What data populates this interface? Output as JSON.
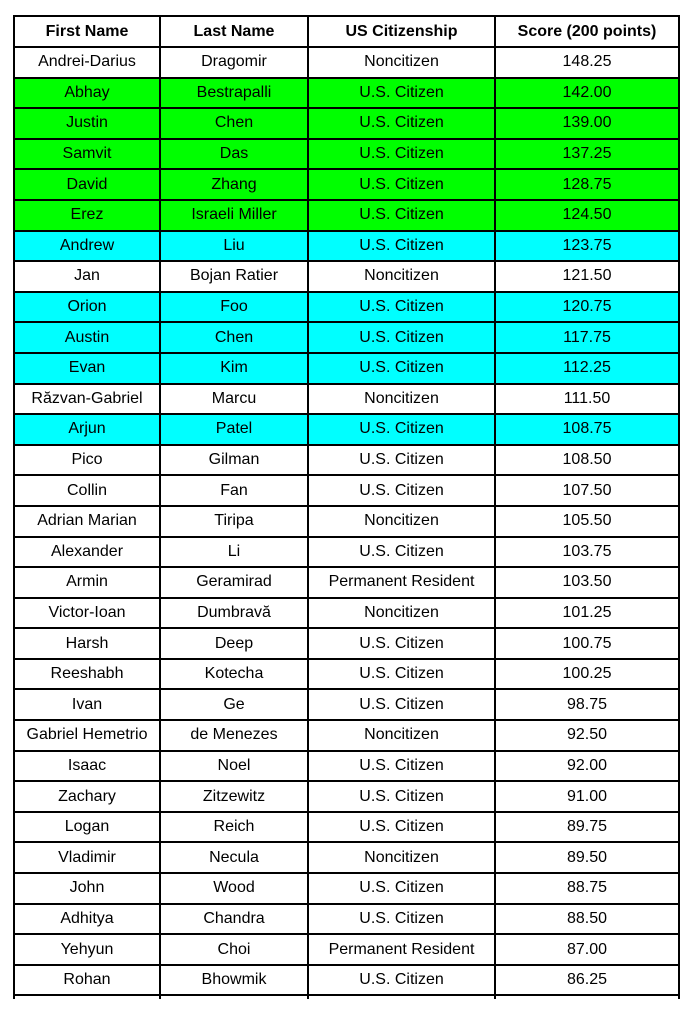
{
  "colors": {
    "row_green": "#00FF00",
    "row_cyan": "#00FFFF",
    "row_default": "#FFFFFF",
    "border": "#000000",
    "text": "#000000"
  },
  "chart_data": {
    "type": "table",
    "columns": [
      "First Name",
      "Last Name",
      "US Citizenship",
      "Score (200 points)"
    ],
    "rows": [
      {
        "first": "Andrei-Darius",
        "last": "Dragomir",
        "citizenship": "Noncitizen",
        "score": "148.25",
        "highlight": "none"
      },
      {
        "first": "Abhay",
        "last": "Bestrapalli",
        "citizenship": "U.S. Citizen",
        "score": "142.00",
        "highlight": "green"
      },
      {
        "first": "Justin",
        "last": "Chen",
        "citizenship": "U.S. Citizen",
        "score": "139.00",
        "highlight": "green"
      },
      {
        "first": "Samvit",
        "last": "Das",
        "citizenship": "U.S. Citizen",
        "score": "137.25",
        "highlight": "green"
      },
      {
        "first": "David",
        "last": "Zhang",
        "citizenship": "U.S. Citizen",
        "score": "128.75",
        "highlight": "green"
      },
      {
        "first": "Erez",
        "last": "Israeli Miller",
        "citizenship": "U.S. Citizen",
        "score": "124.50",
        "highlight": "green"
      },
      {
        "first": "Andrew",
        "last": "Liu",
        "citizenship": "U.S. Citizen",
        "score": "123.75",
        "highlight": "cyan"
      },
      {
        "first": "Jan",
        "last": "Bojan Ratier",
        "citizenship": "Noncitizen",
        "score": "121.50",
        "highlight": "none"
      },
      {
        "first": "Orion",
        "last": "Foo",
        "citizenship": "U.S. Citizen",
        "score": "120.75",
        "highlight": "cyan"
      },
      {
        "first": "Austin",
        "last": "Chen",
        "citizenship": "U.S. Citizen",
        "score": "117.75",
        "highlight": "cyan"
      },
      {
        "first": "Evan",
        "last": "Kim",
        "citizenship": "U.S. Citizen",
        "score": "112.25",
        "highlight": "cyan"
      },
      {
        "first": "Răzvan-Gabriel",
        "last": "Marcu",
        "citizenship": "Noncitizen",
        "score": "111.50",
        "highlight": "none"
      },
      {
        "first": "Arjun",
        "last": "Patel",
        "citizenship": "U.S. Citizen",
        "score": "108.75",
        "highlight": "cyan"
      },
      {
        "first": "Pico",
        "last": "Gilman",
        "citizenship": "U.S. Citizen",
        "score": "108.50",
        "highlight": "none"
      },
      {
        "first": "Collin",
        "last": "Fan",
        "citizenship": "U.S. Citizen",
        "score": "107.50",
        "highlight": "none"
      },
      {
        "first": "Adrian Marian",
        "last": "Tiripa",
        "citizenship": "Noncitizen",
        "score": "105.50",
        "highlight": "none"
      },
      {
        "first": "Alexander",
        "last": "Li",
        "citizenship": "U.S. Citizen",
        "score": "103.75",
        "highlight": "none"
      },
      {
        "first": "Armin",
        "last": "Geramirad",
        "citizenship": "Permanent Resident",
        "score": "103.50",
        "highlight": "none"
      },
      {
        "first": "Victor-Ioan",
        "last": "Dumbravă",
        "citizenship": "Noncitizen",
        "score": "101.25",
        "highlight": "none"
      },
      {
        "first": "Harsh",
        "last": "Deep",
        "citizenship": "U.S. Citizen",
        "score": "100.75",
        "highlight": "none"
      },
      {
        "first": "Reeshabh",
        "last": "Kotecha",
        "citizenship": "U.S. Citizen",
        "score": "100.25",
        "highlight": "none"
      },
      {
        "first": "Ivan",
        "last": "Ge",
        "citizenship": "U.S. Citizen",
        "score": "98.75",
        "highlight": "none"
      },
      {
        "first": "Gabriel Hemetrio",
        "last": "de Menezes",
        "citizenship": "Noncitizen",
        "score": "92.50",
        "highlight": "none"
      },
      {
        "first": "Isaac",
        "last": "Noel",
        "citizenship": "U.S. Citizen",
        "score": "92.00",
        "highlight": "none"
      },
      {
        "first": "Zachary",
        "last": "Zitzewitz",
        "citizenship": "U.S. Citizen",
        "score": "91.00",
        "highlight": "none"
      },
      {
        "first": "Logan",
        "last": "Reich",
        "citizenship": "U.S. Citizen",
        "score": "89.75",
        "highlight": "none"
      },
      {
        "first": "Vladimir",
        "last": "Necula",
        "citizenship": "Noncitizen",
        "score": "89.50",
        "highlight": "none"
      },
      {
        "first": "John",
        "last": "Wood",
        "citizenship": "U.S. Citizen",
        "score": "88.75",
        "highlight": "none"
      },
      {
        "first": "Adhitya",
        "last": "Chandra",
        "citizenship": "U.S. Citizen",
        "score": "88.50",
        "highlight": "none"
      },
      {
        "first": "Yehyun",
        "last": "Choi",
        "citizenship": "Permanent Resident",
        "score": "87.00",
        "highlight": "none"
      },
      {
        "first": "Rohan",
        "last": "Bhowmik",
        "citizenship": "U.S. Citizen",
        "score": "86.25",
        "highlight": "none"
      }
    ]
  }
}
